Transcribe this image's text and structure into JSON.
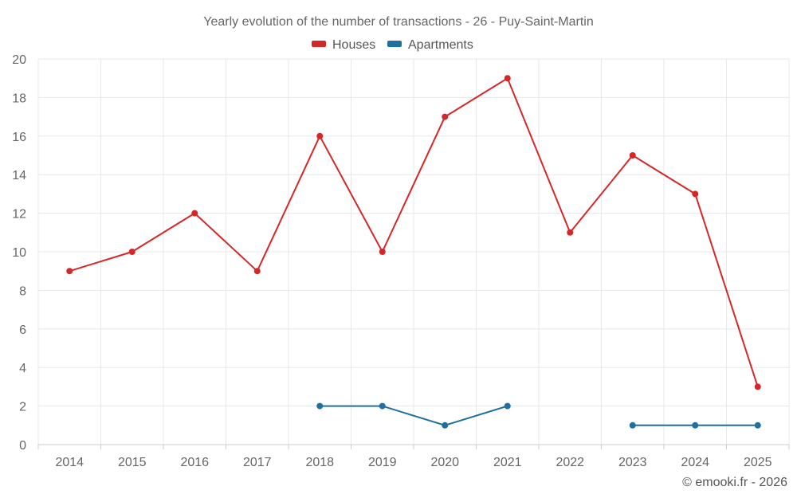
{
  "chart_data": {
    "type": "line",
    "title": "Yearly evolution of the number of transactions - 26 - Puy-Saint-Martin",
    "xlabel": "",
    "ylabel": "",
    "categories": [
      "2014",
      "2015",
      "2016",
      "2017",
      "2018",
      "2019",
      "2020",
      "2021",
      "2022",
      "2023",
      "2024",
      "2025"
    ],
    "ylim": [
      0,
      20
    ],
    "yticks": [
      0,
      2,
      4,
      6,
      8,
      10,
      12,
      14,
      16,
      18,
      20
    ],
    "grid": true,
    "legend_position": "top-center",
    "series": [
      {
        "name": "Houses",
        "color": "#d62728",
        "values": [
          9,
          10,
          12,
          9,
          16,
          10,
          17,
          19,
          11,
          15,
          13,
          3
        ]
      },
      {
        "name": "Apartments",
        "color": "#1f6f9f",
        "values": [
          null,
          null,
          null,
          null,
          2,
          2,
          1,
          2,
          null,
          1,
          1,
          1
        ]
      }
    ]
  },
  "credit": "© emooki.fr - 2026"
}
